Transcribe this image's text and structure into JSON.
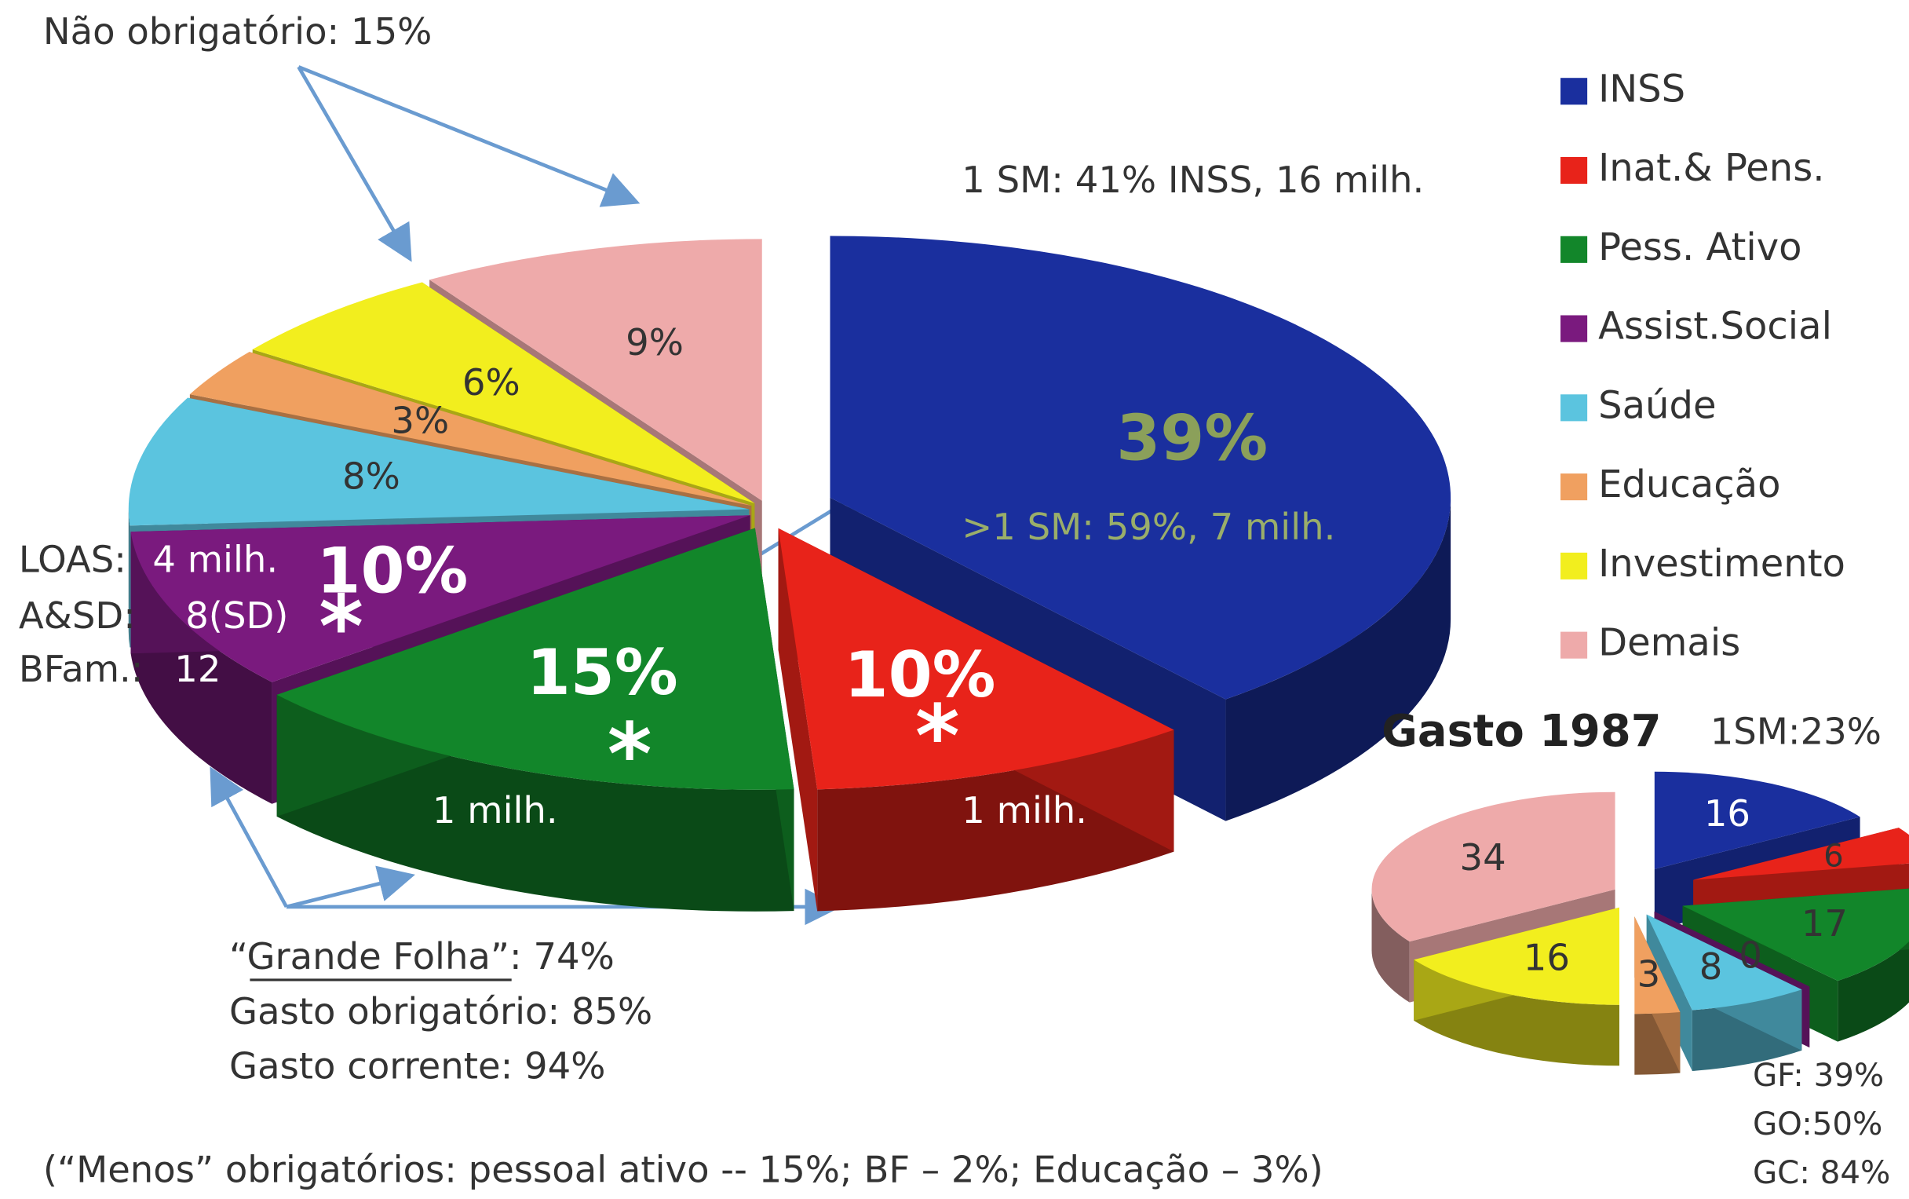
{
  "chart_data": [
    {
      "type": "pie",
      "categories": [
        "INSS",
        "Inat.& Pens.",
        "Pess. Ativo",
        "Assist.Social",
        "Saúde",
        "Educação",
        "Investimento",
        "Demais"
      ],
      "values": [
        39,
        10,
        15,
        10,
        8,
        3,
        6,
        9
      ],
      "value_labels": [
        "39%",
        "10%",
        "15%",
        "10%",
        "8%",
        "3%",
        "6%",
        "9%"
      ],
      "colors": [
        "#1a2f9e",
        "#e8231a",
        "#12862a",
        "#7a1a7e",
        "#5bc4df",
        "#f0a060",
        "#f2ee1e",
        "#eeaaaa"
      ],
      "annotations": [
        "Não obrigatório: 15%",
        "1 SM: 41% INSS, 16 milh.",
        ">1 SM: 59%, 7 milh.",
        "LOAS:",
        "4 milh.",
        "A&SD:",
        "8(SD)",
        "BFam.:",
        "12",
        "*",
        "*",
        "*",
        "1 milh.",
        "1 milh.",
        "“Grande Folha”: 74%",
        "Gasto obrigatório: 85%",
        "Gasto corrente: 94%",
        "(“Menos” obrigatórios: pessoal ativo --  15%; BF – 2%; Educação – 3%)"
      ]
    },
    {
      "type": "pie",
      "title": "Gasto 1987",
      "values": [
        16,
        6,
        17,
        0,
        8,
        3,
        16,
        34
      ],
      "colors": [
        "#1a2f9e",
        "#e8231a",
        "#12862a",
        "#7a1a7e",
        "#5bc4df",
        "#f0a060",
        "#f2ee1e",
        "#eeaaaa"
      ],
      "annotations": [
        "1SM:23%",
        "GF: 39%",
        "GO:50%",
        "GC: 84%"
      ]
    }
  ]
}
